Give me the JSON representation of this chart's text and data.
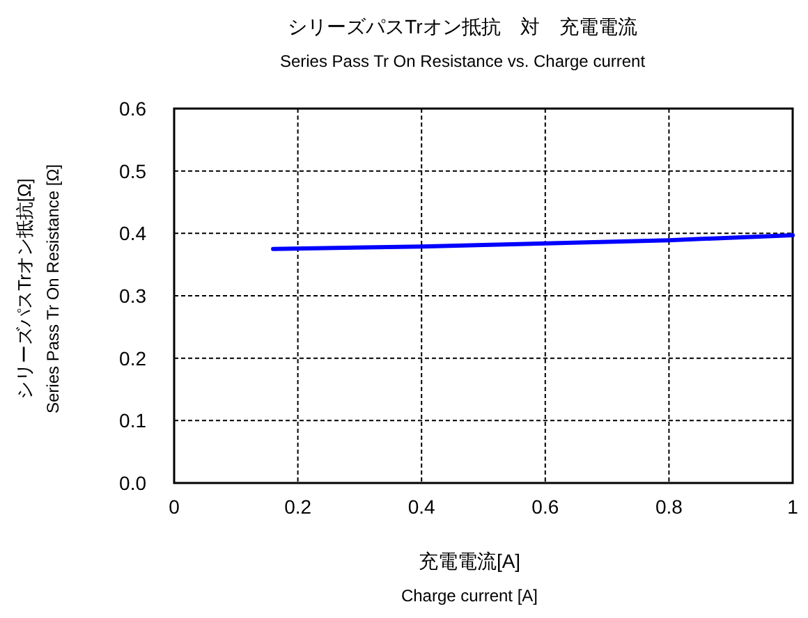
{
  "chart_data": {
    "type": "line",
    "title": "シリーズパスTrオン抵抗　対　充電電流",
    "subtitle": "Series Pass Tr On Resistance vs. Charge current",
    "xlabel": "充電電流[A]\nCharge current [A]",
    "ylabel": "シリーズパスTrオン抵抗[Ω]\nSeries Pass Tr On Resistance [Ω]",
    "x": [
      0.16,
      0.4,
      0.6,
      0.8,
      1.0
    ],
    "series": [
      {
        "color": "#0000ff",
        "values": [
          0.375,
          0.379,
          0.384,
          0.389,
          0.397
        ]
      }
    ],
    "xlim": [
      0,
      1
    ],
    "xticks": [
      0,
      0.2,
      0.4,
      0.6,
      0.8,
      1
    ],
    "ylim": [
      0,
      0.6
    ],
    "yticks": [
      {
        "value": 0,
        "label": "0.0"
      },
      0.1,
      0.2,
      0.3,
      0.4,
      0.5,
      0.6
    ],
    "grid": true,
    "line_style": "solid",
    "marker": "none"
  }
}
